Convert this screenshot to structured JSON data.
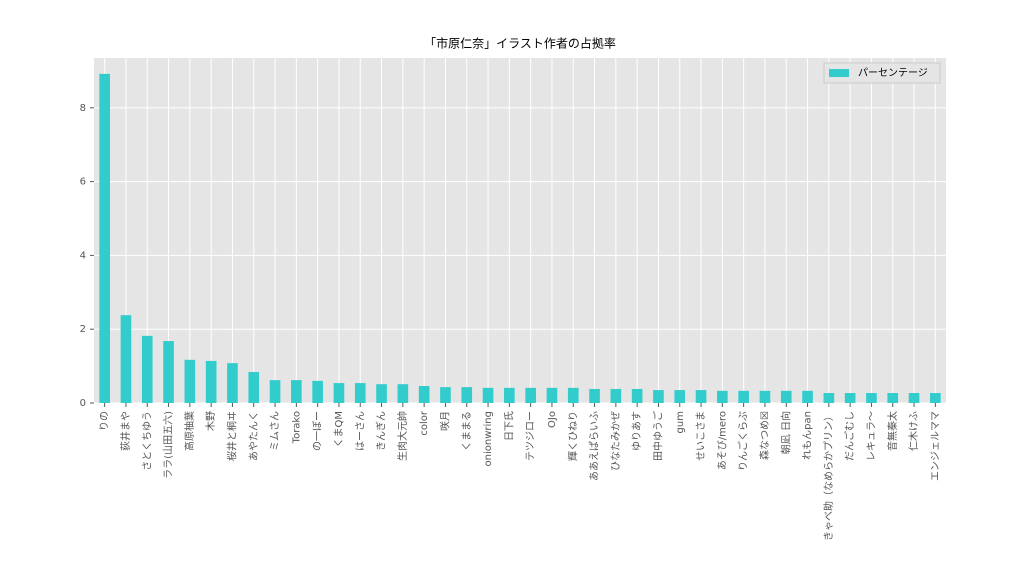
{
  "chart_data": {
    "type": "bar",
    "title": "「市原仁奈」イラスト作者の占拠率",
    "categories": [
      "りの",
      "荻井まや",
      "さとくちゆう",
      "ララ(山田五六)",
      "高原柚葉",
      "木野",
      "桜井と桐ヰ",
      "あやたんく",
      "ミムさん",
      "Torako",
      "の一ぼー",
      "くまQM",
      "はーさん",
      "きんぎん",
      "生肉大元帥",
      "color",
      "咲月",
      "くままる",
      "onionwring",
      "日下氏",
      "テツジロー",
      "OJo",
      "輝くひねり",
      "ああえぱらいふ",
      "ひなたみかぜ",
      "ゆりあす",
      "田中ゆうご",
      "gum",
      "せいこさま",
      "あそび/mero",
      "りんごくらぶ",
      "森なつめ☒",
      "朝凪 日向",
      "れもんpan",
      "きゃべ助（なめらかプリン）",
      "だんごむし",
      "レキュラ〜",
      "音無秦太",
      "仁木けふ",
      "エンジェルママ"
    ],
    "series": [
      {
        "name": "パーセンテージ",
        "color": "#33cccc",
        "values": [
          8.92,
          2.38,
          1.82,
          1.68,
          1.17,
          1.14,
          1.08,
          0.84,
          0.62,
          0.62,
          0.6,
          0.54,
          0.54,
          0.51,
          0.51,
          0.46,
          0.43,
          0.43,
          0.41,
          0.41,
          0.41,
          0.41,
          0.41,
          0.38,
          0.38,
          0.38,
          0.35,
          0.35,
          0.35,
          0.33,
          0.33,
          0.33,
          0.33,
          0.33,
          0.27,
          0.27,
          0.27,
          0.27,
          0.27,
          0.27
        ]
      }
    ],
    "ylim": [
      0,
      9.35
    ],
    "yticks": [
      0,
      2,
      4,
      6,
      8
    ],
    "grid": true,
    "legend": "upper right"
  }
}
